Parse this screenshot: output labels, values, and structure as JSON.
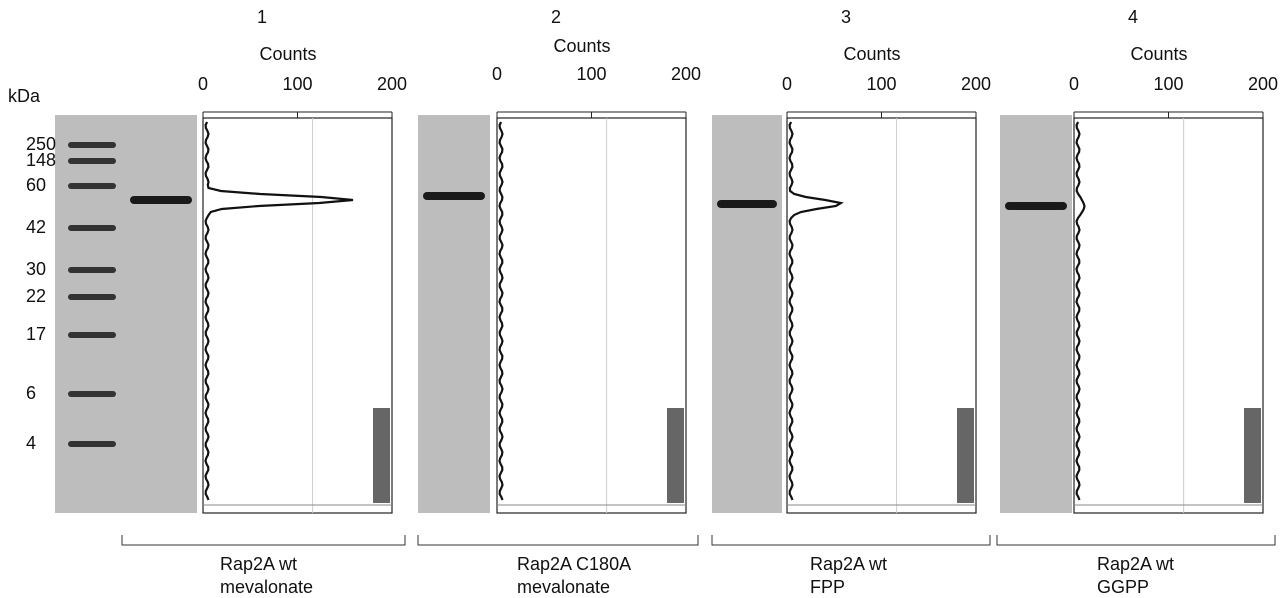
{
  "ladder": {
    "unit": "kDa",
    "markers": [
      "250",
      "148",
      "60",
      "42",
      "30",
      "22",
      "17",
      "6",
      "4"
    ]
  },
  "panels": [
    {
      "number": "1",
      "axis_label": "Counts",
      "ticks": [
        "0",
        "100",
        "200"
      ],
      "caption": [
        "Rap2A wt",
        "mevalonate"
      ]
    },
    {
      "number": "2",
      "axis_label": "Counts",
      "ticks": [
        "0",
        "100",
        "200"
      ],
      "caption": [
        "Rap2A C180A",
        "mevalonate"
      ]
    },
    {
      "number": "3",
      "axis_label": "Counts",
      "ticks": [
        "0",
        "100",
        "200"
      ],
      "caption": [
        "Rap2A wt",
        "FPP"
      ]
    },
    {
      "number": "4",
      "axis_label": "Counts",
      "ticks": [
        "0",
        "100",
        "200"
      ],
      "caption": [
        "Rap2A wt",
        "GGPP"
      ]
    }
  ]
}
